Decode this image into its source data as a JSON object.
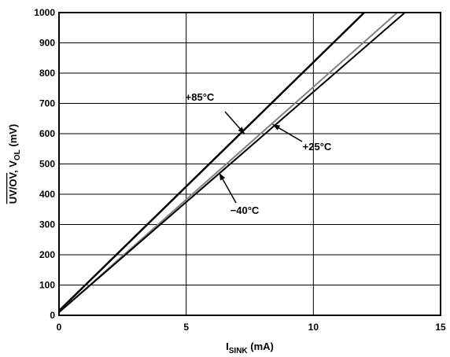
{
  "chart_data": {
    "type": "line",
    "xlabel": {
      "main": "I",
      "sub": "SINK",
      "rest": " (mA)"
    },
    "ylabel": {
      "over": "UV/OV",
      "mid": ", V",
      "sub": "OL",
      "rest": " (mV)"
    },
    "xlim": [
      0,
      15
    ],
    "ylim": [
      0,
      1000
    ],
    "xticks": [
      0,
      5,
      10,
      15
    ],
    "yticks": [
      0,
      100,
      200,
      300,
      400,
      500,
      600,
      700,
      800,
      900,
      1000
    ],
    "grid": true,
    "series": [
      {
        "name": "+85°C",
        "x": [
          0,
          12.0
        ],
        "y": [
          15,
          1000
        ],
        "color": "#000000"
      },
      {
        "name": "+25°C",
        "x": [
          0,
          13.3
        ],
        "y": [
          10,
          1000
        ],
        "color": "#808080"
      },
      {
        "name": "−40°C",
        "x": [
          0,
          13.6
        ],
        "y": [
          10,
          1000
        ],
        "color": "#000000"
      }
    ],
    "annotations": [
      {
        "text": "+85°C",
        "series": 0,
        "at": [
          7.3,
          599
        ]
      },
      {
        "text": "+25°C",
        "series": 1,
        "at": [
          8.4,
          631
        ]
      },
      {
        "text": "−40°C",
        "series": 2,
        "at": [
          6.3,
          470
        ]
      }
    ]
  }
}
